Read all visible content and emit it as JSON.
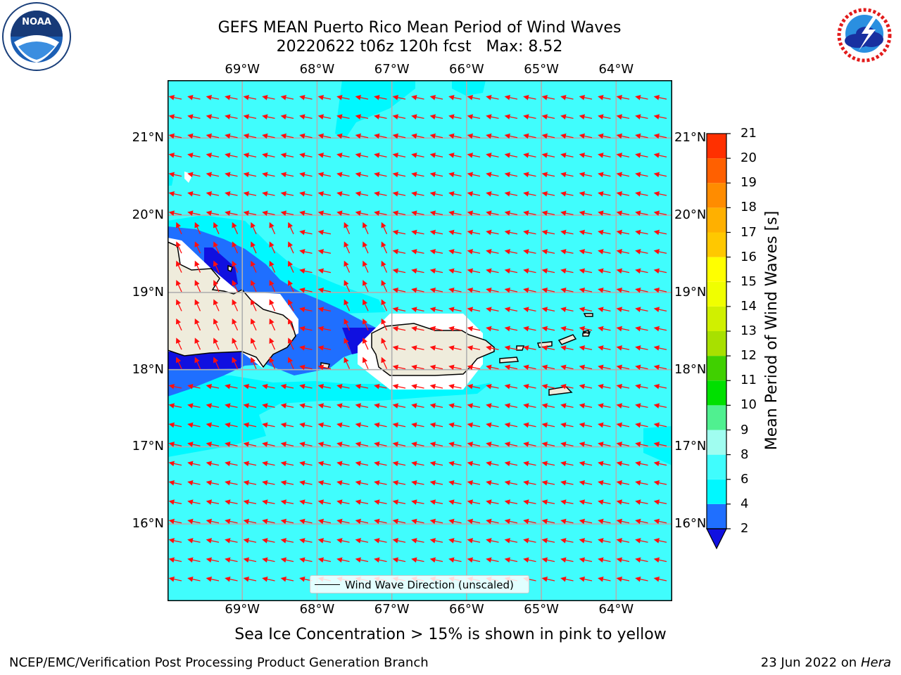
{
  "title": {
    "line1": "GEFS MEAN Puerto Rico Mean Period of Wind Waves",
    "line2": "20220622 t06z 120h fcst   Max: 8.52"
  },
  "map": {
    "lon_labels": [
      "69°W",
      "68°W",
      "67°W",
      "66°W",
      "65°W",
      "64°W"
    ],
    "lat_labels": [
      "21°N",
      "20°N",
      "19°N",
      "18°N",
      "17°N",
      "16°N"
    ],
    "lon_values": [
      -69,
      -68,
      -67,
      -66,
      -65,
      -64
    ],
    "lat_values": [
      21,
      20,
      19,
      18,
      17,
      16
    ],
    "extent": {
      "lon_min": -70.0,
      "lon_max": -63.25,
      "lat_min": 15.0,
      "lat_max": 21.75
    },
    "fill_colors": {
      "period_2_4": "#1f6fff",
      "period_4_6": "#00f8ff",
      "period_6_8": "#40fdfd",
      "period_lt_2": "#1010e0",
      "land": "#efecdc",
      "missing": "#ffffff"
    },
    "arrow_color": "#ff1010",
    "arrow_direction": "toward west-northwest (easterly trade-wind waves)",
    "legend_label": "Wind Wave Direction (unscaled)"
  },
  "colorbar": {
    "label": "Mean Period of Wind Waves [s]",
    "ticks": [
      "2",
      "4",
      "6",
      "8",
      "9",
      "10",
      "11",
      "12",
      "13",
      "14",
      "15",
      "16",
      "17",
      "18",
      "19",
      "20",
      "21"
    ],
    "tick_values": [
      2,
      4,
      6,
      8,
      9,
      10,
      11,
      12,
      13,
      14,
      15,
      16,
      17,
      18,
      19,
      20,
      21
    ],
    "colors": [
      "#1f6fff",
      "#00f8ff",
      "#40fdfd",
      "#a0fdf0",
      "#50f090",
      "#00e000",
      "#40d000",
      "#a8e000",
      "#d0f000",
      "#f0ff00",
      "#ffff00",
      "#ffc800",
      "#ffb000",
      "#ff8c00",
      "#ff6000",
      "#ff3000",
      "#ff0000"
    ],
    "under_color": "#1010e0"
  },
  "subtitle": "Sea Ice Concentration > 15% is shown in pink to yellow",
  "footer": {
    "left": "NCEP/EMC/Verification Post Processing Product Generation Branch",
    "right_date": "23 Jun 2022 on",
    "right_machine": "Hera"
  }
}
